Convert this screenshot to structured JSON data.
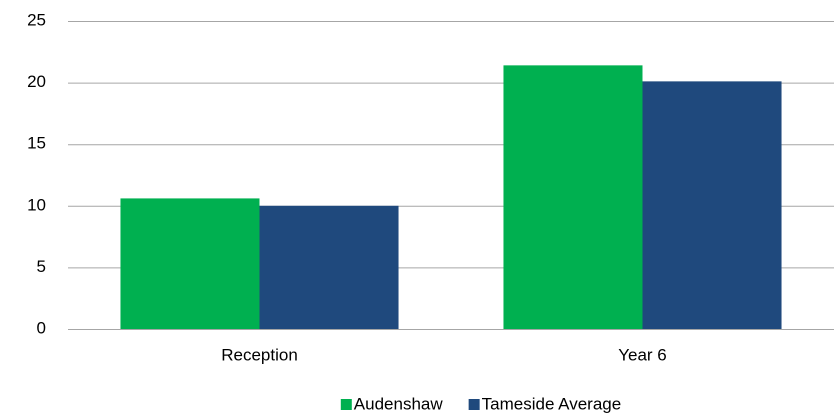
{
  "chart_data": {
    "type": "bar",
    "categories": [
      "Reception",
      "Year 6"
    ],
    "series": [
      {
        "name": "Audenshaw",
        "color": "#00b050",
        "values": [
          10.6,
          21.4
        ]
      },
      {
        "name": "Tameside Average",
        "color": "#1f497d",
        "values": [
          10.0,
          20.1
        ]
      }
    ],
    "ylim": [
      0,
      25
    ],
    "yticks": [
      0,
      5,
      10,
      15,
      20,
      25
    ],
    "grid": true,
    "legend": "bottom"
  }
}
